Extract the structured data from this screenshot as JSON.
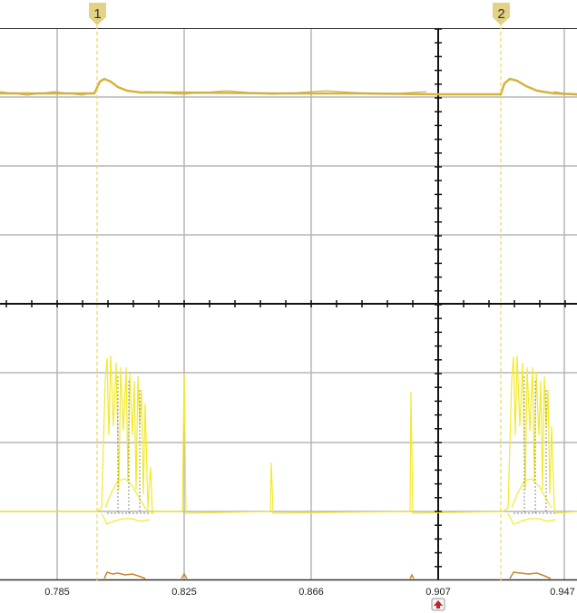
{
  "scope": {
    "x_ticks": [
      "0.785",
      "0.825",
      "0.866",
      "0.907",
      "0.947"
    ],
    "markers": [
      {
        "label": "1",
        "color": "#e3d283"
      },
      {
        "label": "2",
        "color": "#e3d283"
      }
    ],
    "trigger_icon": "trigger-position-arrow-icon",
    "colors": {
      "grid": "#b6b6b6",
      "channel_a": "#d4b53c",
      "channel_b": "#f2ea28",
      "channel_c": "#c8862a",
      "marker_line": "#f0d45a",
      "trigger": "#cc2222"
    }
  }
}
